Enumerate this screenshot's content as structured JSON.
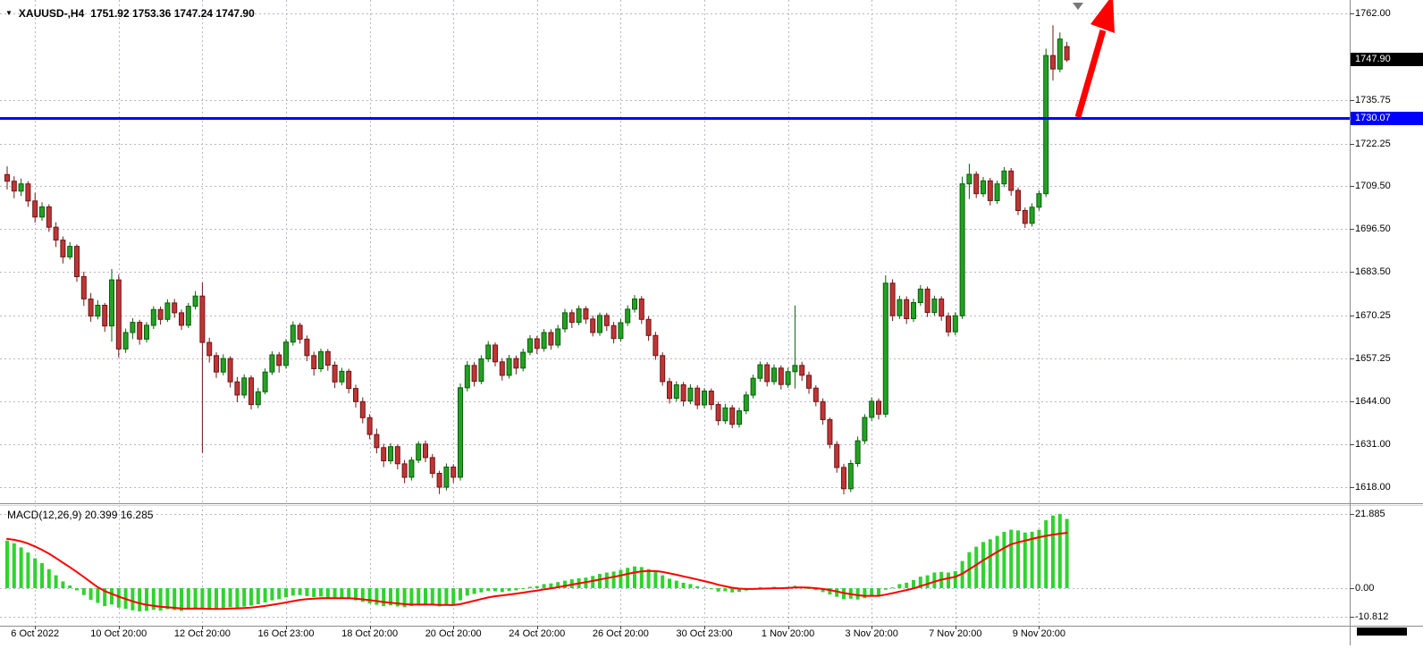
{
  "header": {
    "dropdown_icon": "▼",
    "symbol": "XAUUSD-,H4",
    "ohlc": "1751.92 1753.36 1747.24 1747.90"
  },
  "colors": {
    "background": "#ffffff",
    "grid": "#b6b6c6",
    "bull_fill": "#23a123",
    "bull_stroke": "#0b5e0b",
    "bear_fill": "#bf3535",
    "bear_stroke": "#701616",
    "macd_bar": "#2fd32f",
    "signal_line": "#ff0000",
    "hline": "#0000ff",
    "arrow": "#ff0000",
    "separator": "#8c8c8c",
    "axis_text": "#000000",
    "scrollbar": "#000000"
  },
  "price_axis": {
    "ticks": [
      {
        "label": "1762.00",
        "value": 1762.0
      },
      {
        "label": "1735.75",
        "value": 1735.75
      },
      {
        "label": "1722.25",
        "value": 1722.25
      },
      {
        "label": "1709.50",
        "value": 1709.5
      },
      {
        "label": "1696.50",
        "value": 1696.5
      },
      {
        "label": "1683.50",
        "value": 1683.5
      },
      {
        "label": "1670.25",
        "value": 1670.25
      },
      {
        "label": "1657.25",
        "value": 1657.25
      },
      {
        "label": "1644.00",
        "value": 1644.0
      },
      {
        "label": "1631.00",
        "value": 1631.0
      },
      {
        "label": "1618.00",
        "value": 1618.0
      }
    ],
    "current": {
      "label": "1747.90",
      "value": 1747.9,
      "bg": "#000000",
      "fg": "#ffffff"
    },
    "hline": {
      "label": "1730.07",
      "value": 1730.07,
      "bg": "#0000ff",
      "fg": "#ffffff"
    }
  },
  "time_axis": {
    "labels": [
      {
        "label": "6 Oct 2022",
        "i": 4
      },
      {
        "label": "10 Oct 20:00",
        "i": 16
      },
      {
        "label": "12 Oct 20:00",
        "i": 28
      },
      {
        "label": "16 Oct 23:00",
        "i": 40
      },
      {
        "label": "18 Oct 20:00",
        "i": 52
      },
      {
        "label": "20 Oct 20:00",
        "i": 64
      },
      {
        "label": "24 Oct 20:00",
        "i": 76
      },
      {
        "label": "26 Oct 20:00",
        "i": 88
      },
      {
        "label": "30 Oct 23:00",
        "i": 100
      },
      {
        "label": "1 Nov 20:00",
        "i": 112
      },
      {
        "label": "3 Nov 20:00",
        "i": 124
      },
      {
        "label": "7 Nov 20:00",
        "i": 136
      },
      {
        "label": "9 Nov 20:00",
        "i": 148
      }
    ]
  },
  "macd_panel": {
    "label": "MACD(12,26,9) 20.399 16.285",
    "axis": [
      {
        "label": "21.885",
        "value": 21.885
      },
      {
        "label": "0.00",
        "value": 0
      },
      {
        "label": "-10.812",
        "value": -10.812
      }
    ]
  },
  "chart_data": {
    "type": "candlestick",
    "symbol": "XAUUSD-",
    "timeframe": "H4",
    "current_ohlc": {
      "open": 1751.92,
      "high": 1753.36,
      "low": 1747.24,
      "close": 1747.9
    },
    "price_axis_range": {
      "top": 1762.0,
      "bottom": 1618.0
    },
    "horizontal_line": 1730.07,
    "indicator": {
      "name": "MACD",
      "params": [
        12,
        26,
        9
      ],
      "macd_value": 20.399,
      "signal_value": 16.285,
      "axis_max": 21.885,
      "axis_min": -10.812
    },
    "candles": [
      [
        1713.0,
        1715.5,
        1708.5,
        1711.0
      ],
      [
        1711.0,
        1712.5,
        1705.8,
        1708.0
      ],
      [
        1708.0,
        1711.8,
        1706.5,
        1710.2
      ],
      [
        1710.2,
        1711.0,
        1703.2,
        1705.0
      ],
      [
        1705.0,
        1707.5,
        1698.4,
        1700.1
      ],
      [
        1700.1,
        1704.6,
        1699.0,
        1703.2
      ],
      [
        1703.2,
        1704.0,
        1695.6,
        1697.0
      ],
      [
        1697.0,
        1698.5,
        1691.0,
        1693.1
      ],
      [
        1693.1,
        1694.2,
        1686.0,
        1688.0
      ],
      [
        1688.0,
        1692.5,
        1687.2,
        1691.2
      ],
      [
        1691.2,
        1691.8,
        1680.4,
        1682.0
      ],
      [
        1682.0,
        1683.5,
        1673.1,
        1675.2
      ],
      [
        1675.2,
        1677.0,
        1668.3,
        1670.0
      ],
      [
        1670.0,
        1674.8,
        1669.0,
        1673.3
      ],
      [
        1673.3,
        1674.0,
        1665.2,
        1667.0
      ],
      [
        1667.0,
        1684.3,
        1662.2,
        1681.0
      ],
      [
        1681.0,
        1682.6,
        1657.4,
        1660.0
      ],
      [
        1660.0,
        1666.2,
        1658.8,
        1665.0
      ],
      [
        1665.0,
        1669.4,
        1663.0,
        1668.1
      ],
      [
        1668.1,
        1668.9,
        1661.3,
        1663.0
      ],
      [
        1663.0,
        1668.2,
        1662.0,
        1667.2
      ],
      [
        1667.2,
        1673.0,
        1666.1,
        1672.0
      ],
      [
        1672.0,
        1672.9,
        1667.4,
        1669.0
      ],
      [
        1669.0,
        1675.1,
        1668.2,
        1674.0
      ],
      [
        1674.0,
        1675.2,
        1669.5,
        1671.0
      ],
      [
        1671.0,
        1672.0,
        1665.8,
        1667.2
      ],
      [
        1667.2,
        1674.0,
        1666.4,
        1673.0
      ],
      [
        1673.0,
        1677.6,
        1672.0,
        1676.1
      ],
      [
        1676.1,
        1680.2,
        1628.4,
        1662.0
      ],
      [
        1662.0,
        1663.4,
        1655.9,
        1658.0
      ],
      [
        1658.0,
        1659.0,
        1651.2,
        1653.0
      ],
      [
        1653.0,
        1658.4,
        1652.0,
        1657.1
      ],
      [
        1657.1,
        1657.8,
        1648.3,
        1650.0
      ],
      [
        1650.0,
        1651.5,
        1643.8,
        1646.0
      ],
      [
        1646.0,
        1652.3,
        1645.0,
        1651.2
      ],
      [
        1651.2,
        1652.0,
        1641.6,
        1643.1
      ],
      [
        1643.1,
        1648.2,
        1642.0,
        1647.0
      ],
      [
        1647.0,
        1654.1,
        1646.2,
        1653.0
      ],
      [
        1653.0,
        1659.3,
        1652.1,
        1658.2
      ],
      [
        1658.2,
        1659.1,
        1652.8,
        1655.0
      ],
      [
        1655.0,
        1663.0,
        1654.0,
        1662.1
      ],
      [
        1662.1,
        1668.4,
        1661.0,
        1667.2
      ],
      [
        1667.2,
        1668.0,
        1661.6,
        1663.0
      ],
      [
        1663.0,
        1664.1,
        1656.3,
        1658.0
      ],
      [
        1658.0,
        1659.2,
        1651.9,
        1654.0
      ],
      [
        1654.0,
        1660.1,
        1653.0,
        1659.2
      ],
      [
        1659.2,
        1660.0,
        1653.4,
        1655.1
      ],
      [
        1655.1,
        1656.2,
        1648.1,
        1650.0
      ],
      [
        1650.0,
        1654.3,
        1649.0,
        1653.2
      ],
      [
        1653.2,
        1654.0,
        1646.5,
        1648.0
      ],
      [
        1648.0,
        1649.1,
        1642.2,
        1644.0
      ],
      [
        1644.0,
        1645.3,
        1637.4,
        1639.1
      ],
      [
        1639.1,
        1640.2,
        1632.6,
        1634.0
      ],
      [
        1634.0,
        1635.8,
        1628.3,
        1630.0
      ],
      [
        1630.0,
        1631.2,
        1624.1,
        1626.0
      ],
      [
        1626.0,
        1631.4,
        1625.0,
        1630.3
      ],
      [
        1630.3,
        1631.0,
        1623.4,
        1625.1
      ],
      [
        1625.1,
        1626.3,
        1619.2,
        1621.0
      ],
      [
        1621.0,
        1627.2,
        1620.0,
        1626.2
      ],
      [
        1626.2,
        1632.0,
        1625.3,
        1631.1
      ],
      [
        1631.1,
        1632.2,
        1625.6,
        1627.0
      ],
      [
        1627.0,
        1628.1,
        1620.8,
        1622.2
      ],
      [
        1622.2,
        1623.0,
        1615.9,
        1618.0
      ],
      [
        1618.0,
        1625.2,
        1617.0,
        1624.1
      ],
      [
        1624.1,
        1625.0,
        1619.3,
        1621.0
      ],
      [
        1621.0,
        1649.5,
        1620.0,
        1648.2
      ],
      [
        1648.2,
        1656.3,
        1647.1,
        1655.0
      ],
      [
        1655.0,
        1656.0,
        1648.6,
        1650.2
      ],
      [
        1650.2,
        1658.1,
        1649.3,
        1657.0
      ],
      [
        1657.0,
        1662.4,
        1656.0,
        1661.2
      ],
      [
        1661.2,
        1662.0,
        1654.7,
        1656.1
      ],
      [
        1656.1,
        1657.2,
        1650.4,
        1652.0
      ],
      [
        1652.0,
        1658.2,
        1651.0,
        1657.1
      ],
      [
        1657.1,
        1658.0,
        1652.3,
        1654.2
      ],
      [
        1654.2,
        1660.1,
        1653.2,
        1659.0
      ],
      [
        1659.0,
        1664.2,
        1658.1,
        1663.1
      ],
      [
        1663.1,
        1664.0,
        1658.5,
        1660.2
      ],
      [
        1660.2,
        1666.1,
        1659.2,
        1665.0
      ],
      [
        1665.0,
        1666.0,
        1659.8,
        1661.2
      ],
      [
        1661.2,
        1667.3,
        1660.3,
        1666.1
      ],
      [
        1666.1,
        1672.2,
        1665.0,
        1671.0
      ],
      [
        1671.0,
        1672.0,
        1666.4,
        1668.1
      ],
      [
        1668.1,
        1673.2,
        1667.2,
        1672.2
      ],
      [
        1672.2,
        1673.0,
        1667.6,
        1669.1
      ],
      [
        1669.1,
        1670.2,
        1663.8,
        1665.0
      ],
      [
        1665.0,
        1671.1,
        1664.0,
        1670.2
      ],
      [
        1670.2,
        1671.0,
        1665.5,
        1667.1
      ],
      [
        1667.1,
        1668.2,
        1661.7,
        1663.2
      ],
      [
        1663.2,
        1669.1,
        1662.2,
        1668.0
      ],
      [
        1668.0,
        1673.3,
        1667.0,
        1672.1
      ],
      [
        1672.1,
        1676.4,
        1671.1,
        1675.2
      ],
      [
        1675.2,
        1676.1,
        1667.6,
        1669.0
      ],
      [
        1669.0,
        1670.0,
        1662.5,
        1664.1
      ],
      [
        1664.1,
        1665.2,
        1656.7,
        1658.0
      ],
      [
        1658.0,
        1659.0,
        1648.8,
        1650.1
      ],
      [
        1650.1,
        1651.2,
        1643.4,
        1645.0
      ],
      [
        1645.0,
        1650.2,
        1644.0,
        1649.1
      ],
      [
        1649.1,
        1650.0,
        1642.6,
        1644.2
      ],
      [
        1644.2,
        1649.3,
        1643.2,
        1648.1
      ],
      [
        1648.1,
        1649.0,
        1641.7,
        1643.0
      ],
      [
        1643.0,
        1648.1,
        1642.0,
        1647.2
      ],
      [
        1647.2,
        1648.0,
        1641.5,
        1643.1
      ],
      [
        1643.1,
        1644.0,
        1636.8,
        1638.2
      ],
      [
        1638.2,
        1643.3,
        1637.2,
        1642.1
      ],
      [
        1642.1,
        1643.0,
        1635.9,
        1637.1
      ],
      [
        1637.1,
        1642.2,
        1636.1,
        1641.2
      ],
      [
        1641.2,
        1647.1,
        1640.2,
        1646.0
      ],
      [
        1646.0,
        1652.2,
        1645.0,
        1651.1
      ],
      [
        1651.1,
        1656.2,
        1650.1,
        1655.2
      ],
      [
        1655.2,
        1656.0,
        1648.6,
        1650.1
      ],
      [
        1650.1,
        1655.3,
        1649.1,
        1654.2
      ],
      [
        1654.2,
        1655.0,
        1647.7,
        1649.2
      ],
      [
        1649.2,
        1654.3,
        1648.2,
        1653.1
      ],
      [
        1653.1,
        1673.2,
        1648.0,
        1655.0
      ],
      [
        1655.0,
        1656.1,
        1650.3,
        1652.0
      ],
      [
        1652.0,
        1653.1,
        1646.4,
        1648.1
      ],
      [
        1648.1,
        1649.0,
        1642.6,
        1644.0
      ],
      [
        1644.0,
        1645.0,
        1637.0,
        1638.5
      ],
      [
        1638.5,
        1639.2,
        1629.8,
        1631.0
      ],
      [
        1631.0,
        1632.0,
        1622.4,
        1624.0
      ],
      [
        1624.0,
        1625.1,
        1615.8,
        1617.5
      ],
      [
        1617.5,
        1626.3,
        1616.5,
        1625.2
      ],
      [
        1625.2,
        1633.4,
        1624.2,
        1632.1
      ],
      [
        1632.1,
        1640.2,
        1631.1,
        1639.2
      ],
      [
        1639.2,
        1645.3,
        1638.2,
        1644.1
      ],
      [
        1644.1,
        1645.0,
        1638.6,
        1640.2
      ],
      [
        1640.2,
        1682.4,
        1639.2,
        1680.0
      ],
      [
        1680.0,
        1681.2,
        1668.5,
        1670.1
      ],
      [
        1670.1,
        1676.2,
        1669.1,
        1675.0
      ],
      [
        1675.0,
        1676.0,
        1667.6,
        1669.2
      ],
      [
        1669.2,
        1675.3,
        1668.2,
        1674.1
      ],
      [
        1674.1,
        1679.4,
        1673.1,
        1678.2
      ],
      [
        1678.2,
        1679.0,
        1669.7,
        1671.1
      ],
      [
        1671.1,
        1676.2,
        1670.1,
        1675.2
      ],
      [
        1675.2,
        1676.0,
        1668.6,
        1670.0
      ],
      [
        1670.0,
        1671.1,
        1663.8,
        1665.2
      ],
      [
        1665.2,
        1671.2,
        1664.2,
        1670.1
      ],
      [
        1670.1,
        1712.4,
        1669.1,
        1710.2
      ],
      [
        1710.2,
        1716.3,
        1705.6,
        1713.1
      ],
      [
        1713.1,
        1714.0,
        1705.9,
        1707.2
      ],
      [
        1707.2,
        1712.3,
        1706.2,
        1711.1
      ],
      [
        1711.1,
        1712.0,
        1703.6,
        1705.1
      ],
      [
        1705.1,
        1711.2,
        1704.1,
        1710.2
      ],
      [
        1710.2,
        1715.3,
        1709.2,
        1714.1
      ],
      [
        1714.1,
        1715.0,
        1706.6,
        1708.2
      ],
      [
        1708.2,
        1709.1,
        1700.7,
        1702.1
      ],
      [
        1702.1,
        1703.0,
        1696.8,
        1698.2
      ],
      [
        1698.2,
        1704.3,
        1697.2,
        1703.1
      ],
      [
        1703.1,
        1708.2,
        1702.1,
        1707.2
      ],
      [
        1707.2,
        1751.3,
        1706.2,
        1749.2
      ],
      [
        1749.2,
        1758.4,
        1741.6,
        1745.1
      ],
      [
        1745.1,
        1756.2,
        1744.1,
        1754.2
      ],
      [
        1751.92,
        1753.36,
        1747.24,
        1747.9
      ]
    ],
    "macd_histogram": [
      14,
      13.2,
      12,
      10.5,
      8.8,
      7.4,
      5.6,
      3.8,
      2,
      0.8,
      -0.8,
      -2.6,
      -4.4,
      -5.6,
      -6.8,
      -6.2,
      -7.4,
      -7.8,
      -8.4,
      -8.8,
      -8.6,
      -8.2,
      -8.5,
      -8,
      -8.3,
      -8.6,
      -8.1,
      -7.5,
      -7.9,
      -8.2,
      -8,
      -7.6,
      -7.2,
      -7.5,
      -7,
      -6.6,
      -6.1,
      -5.4,
      -4.6,
      -4.2,
      -3.5,
      -2.8,
      -2.6,
      -3,
      -3.4,
      -3.2,
      -3.5,
      -3.9,
      -3.7,
      -4.1,
      -4.6,
      -5.2,
      -5.8,
      -6.3,
      -6.8,
      -6.5,
      -6.9,
      -7.2,
      -6.8,
      -6.3,
      -6,
      -6.4,
      -6.9,
      -6.4,
      -6.6,
      -4.6,
      -2.8,
      -2.2,
      -1.6,
      -1,
      -1.2,
      -1.5,
      -1,
      -0.8,
      -0.2,
      0.4,
      0.6,
      1.2,
      1.4,
      1.8,
      2.2,
      2.6,
      2.9,
      3.1,
      3.6,
      4.2,
      4.6,
      4.9,
      5.4,
      6,
      6.4,
      6.2,
      5.6,
      4.8,
      3.8,
      2.8,
      2.2,
      1.6,
      1.2,
      0.6,
      0.2,
      -0.4,
      -1.3,
      -1.2,
      -1.6,
      -1.4,
      -0.9,
      -0.3,
      0.3,
      0.1,
      0.4,
      0.1,
      0.4,
      0.7,
      0.4,
      -0.1,
      -0.7,
      -1.5,
      -2.4,
      -3.3,
      -4.2,
      -4,
      -4.3,
      -3.8,
      -3,
      -2.8,
      -0.6,
      0.2,
      1.2,
      1.6,
      2.4,
      3.4,
      3.8,
      4.6,
      4.8,
      4.6,
      5,
      8,
      10.6,
      12.2,
      13.6,
      14.4,
      15.4,
      16.6,
      17.2,
      17,
      16.4,
      16.6,
      17.2,
      20,
      21.4,
      21.885,
      20.399
    ],
    "macd_signal": [
      14.5,
      14.24,
      13.79,
      13.13,
      12.26,
      11.29,
      10.15,
      8.88,
      7.5,
      6.16,
      4.77,
      3.3,
      1.76,
      0.29,
      -1.13,
      -2.14,
      -3.19,
      -4.11,
      -4.97,
      -5.74,
      -6.31,
      -6.69,
      -7.05,
      -7.24,
      -7.45,
      -7.68,
      -7.76,
      -7.71,
      -7.75,
      -7.84,
      -7.87,
      -7.82,
      -7.7,
      -7.66,
      -7.53,
      -7.34,
      -7.09,
      -6.75,
      -6.32,
      -5.9,
      -5.42,
      -4.9,
      -4.44,
      -4.15,
      -4.0,
      -3.84,
      -3.77,
      -3.8,
      -3.78,
      -3.84,
      -3.99,
      -4.23,
      -4.54,
      -4.89,
      -5.27,
      -5.52,
      -5.8,
      -6.08,
      -6.22,
      -6.24,
      -6.19,
      -6.23,
      -6.36,
      -6.37,
      -6.42,
      -6.06,
      -5.41,
      -4.77,
      -4.13,
      -3.51,
      -3.05,
      -2.74,
      -2.39,
      -2.07,
      -1.7,
      -1.28,
      -0.9,
      -0.48,
      -0.1,
      0.28,
      0.66,
      1.05,
      1.42,
      1.76,
      2.13,
      2.54,
      2.95,
      3.34,
      3.75,
      4.2,
      4.64,
      4.95,
      5.08,
      5.02,
      4.78,
      4.38,
      3.94,
      3.47,
      3.02,
      2.54,
      2.07,
      1.58,
      1.0,
      0.56,
      0.13,
      -0.18,
      -0.32,
      -0.32,
      -0.2,
      -0.14,
      -0.03,
      0.0,
      0.08,
      0.2,
      0.24,
      0.17,
      0.0,
      -0.3,
      -0.72,
      -1.24,
      -1.83,
      -2.26,
      -2.67,
      -2.9,
      -2.92,
      -2.9,
      -2.44,
      -1.91,
      -1.29,
      -0.71,
      -0.09,
      0.61,
      1.25,
      1.92,
      2.5,
      2.92,
      3.34,
      4.27,
      5.54,
      6.87,
      8.22,
      9.46,
      10.65,
      11.84,
      12.91,
      13.5,
      14.0,
      14.5,
      15.0,
      15.4,
      15.75,
      16.05,
      16.285
    ]
  }
}
